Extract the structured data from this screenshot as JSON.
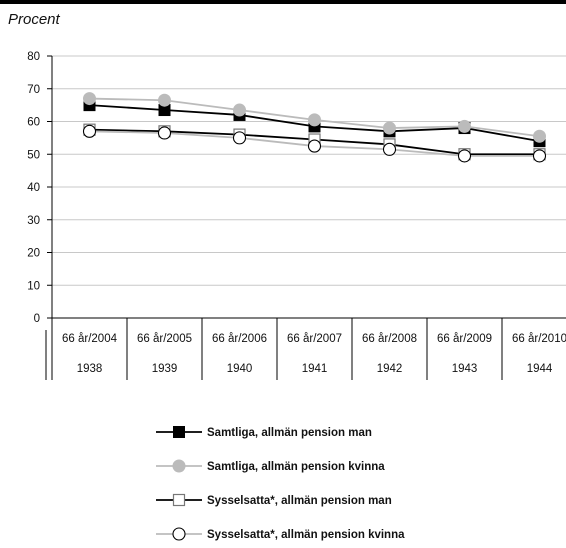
{
  "chart_data": {
    "type": "line",
    "ylabel": "Procent",
    "ylim": [
      0,
      80
    ],
    "yticks": [
      "0",
      "10",
      "20",
      "30",
      "40",
      "50",
      "60",
      "70",
      "80"
    ],
    "categories": [
      "66 år/2004",
      "66 år/2005",
      "66 år/2006",
      "66 år/2007",
      "66 år/2008",
      "66 år/2009",
      "66 år/2010"
    ],
    "categories_row2": [
      "1938",
      "1939",
      "1940",
      "1941",
      "1942",
      "1943",
      "1944"
    ],
    "grid": true,
    "legend_position": "bottom",
    "series": [
      {
        "name": "Samtliga, allmän pension man",
        "color": "#000000",
        "marker": "square-filled",
        "values": [
          65,
          63.5,
          62,
          58.5,
          57,
          58,
          54
        ]
      },
      {
        "name": "Samtliga, allmän pension kvinna",
        "color": "#bbbbbb",
        "marker": "circle-filled",
        "values": [
          67,
          66.5,
          63.5,
          60.5,
          58,
          58.5,
          55.5
        ]
      },
      {
        "name": "Sysselsatta*, allmän pension man",
        "color": "#000000",
        "marker": "square-open",
        "values": [
          57.5,
          57,
          56,
          54.5,
          53,
          50,
          50
        ]
      },
      {
        "name": "Sysselsatta*, allmän pension kvinna",
        "color": "#bbbbbb",
        "marker": "circle-open",
        "values": [
          57,
          56.5,
          55,
          52.5,
          51.5,
          49.5,
          49.5
        ]
      }
    ]
  }
}
